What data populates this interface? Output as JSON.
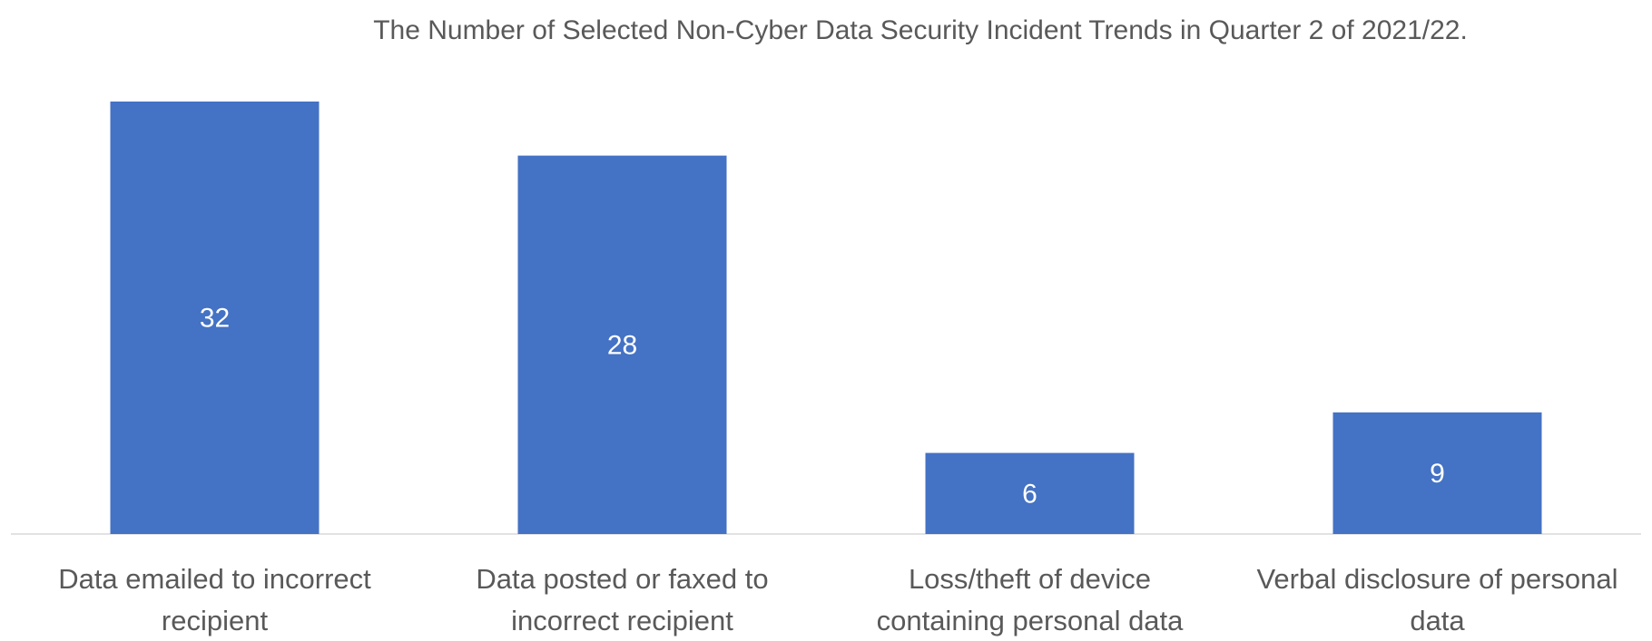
{
  "chart_data": {
    "type": "bar",
    "title": "The Number of Selected Non-Cyber Data Security Incident Trends in Quarter 2 of 2021/22.",
    "categories": [
      [
        "Data emailed to incorrect",
        "recipient"
      ],
      [
        "Data posted or faxed to",
        "incorrect recipient"
      ],
      [
        "Loss/theft of device",
        "containing personal data"
      ],
      [
        "Verbal disclosure of personal",
        "data"
      ]
    ],
    "values": [
      32,
      28,
      6,
      9
    ],
    "data_labels": [
      "32",
      "28",
      "6",
      "9"
    ],
    "xlabel": "",
    "ylabel": "",
    "ylim": [
      0,
      32
    ],
    "grid": false,
    "legend": "none",
    "colors": {
      "bar": "#4472C4",
      "axis": "#D9D9D9",
      "text": "#595959",
      "data_label": "#FFFFFF"
    }
  }
}
